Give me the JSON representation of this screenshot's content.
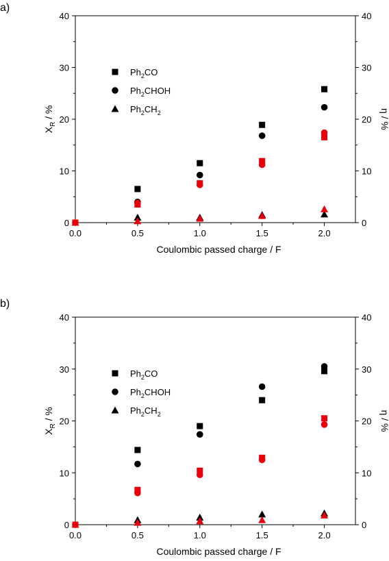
{
  "chart_data": [
    {
      "panel_label": "a)",
      "type": "scatter",
      "xlabel": "Coulombic passed charge / F",
      "ylabel_left": {
        "main": "X",
        "sub": "R",
        "suffix": " / %"
      },
      "ylabel_right": "η / %",
      "xlim": [
        0,
        2.25
      ],
      "ylim": [
        0,
        40
      ],
      "x_ticks": [
        "0.0",
        "0.5",
        "1.0",
        "1.5",
        "2.0"
      ],
      "y_ticks": [
        "0",
        "10",
        "20",
        "30",
        "40"
      ],
      "legend": [
        {
          "marker": "square",
          "parts": [
            "Ph",
            "2",
            "CO"
          ]
        },
        {
          "marker": "circle",
          "parts": [
            "Ph",
            "2",
            "CHOH"
          ]
        },
        {
          "marker": "triangle",
          "parts": [
            "Ph",
            "2",
            "CH",
            "2"
          ]
        }
      ],
      "series": [
        {
          "axis": "left",
          "marker": "square",
          "color": "#000000",
          "points": [
            [
              0.5,
              6.5
            ],
            [
              1.0,
              11.5
            ],
            [
              1.5,
              18.9
            ],
            [
              2.0,
              25.8
            ]
          ]
        },
        {
          "axis": "left",
          "marker": "circle",
          "color": "#000000",
          "points": [
            [
              0.5,
              4.0
            ],
            [
              1.0,
              9.2
            ],
            [
              1.5,
              16.8
            ],
            [
              2.0,
              22.3
            ]
          ]
        },
        {
          "axis": "left",
          "marker": "triangle",
          "color": "#000000",
          "points": [
            [
              0.5,
              1.0
            ],
            [
              1.0,
              1.0
            ],
            [
              1.5,
              1.5
            ],
            [
              2.0,
              1.6
            ]
          ]
        },
        {
          "axis": "right",
          "marker": "square",
          "color": "#e8000b",
          "points": [
            [
              0.0,
              0.0
            ],
            [
              0.5,
              3.5
            ],
            [
              1.0,
              7.6
            ],
            [
              1.5,
              11.9
            ],
            [
              2.0,
              16.5
            ]
          ]
        },
        {
          "axis": "right",
          "marker": "circle",
          "color": "#e8000b",
          "points": [
            [
              0.0,
              0.0
            ],
            [
              0.5,
              3.8
            ],
            [
              1.0,
              7.3
            ],
            [
              1.5,
              11.2
            ],
            [
              2.0,
              17.4
            ]
          ]
        },
        {
          "axis": "right",
          "marker": "triangle",
          "color": "#e8000b",
          "points": [
            [
              0.0,
              0.0
            ],
            [
              0.5,
              0.3
            ],
            [
              1.0,
              0.8
            ],
            [
              1.5,
              1.3
            ],
            [
              2.0,
              2.6
            ]
          ]
        }
      ]
    },
    {
      "panel_label": "b)",
      "type": "scatter",
      "xlabel": "Coulombic passed charge / F",
      "ylabel_left": {
        "main": "X",
        "sub": "R",
        "suffix": " / %"
      },
      "ylabel_right": "η / %",
      "xlim": [
        0,
        2.25
      ],
      "ylim": [
        0,
        40
      ],
      "x_ticks": [
        "0.0",
        "0.5",
        "1.0",
        "1.5",
        "2.0"
      ],
      "y_ticks": [
        "0",
        "10",
        "20",
        "30",
        "40"
      ],
      "legend": [
        {
          "marker": "square",
          "parts": [
            "Ph",
            "2",
            "CO"
          ]
        },
        {
          "marker": "circle",
          "parts": [
            "Ph",
            "2",
            "CHOH"
          ]
        },
        {
          "marker": "triangle",
          "parts": [
            "Ph",
            "2",
            "CH",
            "2"
          ]
        }
      ],
      "series": [
        {
          "axis": "left",
          "marker": "square",
          "color": "#000000",
          "points": [
            [
              0.5,
              14.4
            ],
            [
              1.0,
              19.0
            ],
            [
              1.5,
              24.0
            ],
            [
              2.0,
              29.6
            ]
          ]
        },
        {
          "axis": "left",
          "marker": "circle",
          "color": "#000000",
          "points": [
            [
              0.5,
              11.7
            ],
            [
              1.0,
              17.4
            ],
            [
              1.5,
              26.6
            ],
            [
              2.0,
              30.5
            ]
          ]
        },
        {
          "axis": "left",
          "marker": "triangle",
          "color": "#000000",
          "points": [
            [
              0.5,
              0.9
            ],
            [
              1.0,
              1.4
            ],
            [
              1.5,
              2.0
            ],
            [
              2.0,
              2.2
            ]
          ]
        },
        {
          "axis": "right",
          "marker": "square",
          "color": "#e8000b",
          "points": [
            [
              0.0,
              0.0
            ],
            [
              0.5,
              6.7
            ],
            [
              1.0,
              10.4
            ],
            [
              1.5,
              12.9
            ],
            [
              2.0,
              20.5
            ]
          ]
        },
        {
          "axis": "right",
          "marker": "circle",
          "color": "#e8000b",
          "points": [
            [
              0.0,
              0.0
            ],
            [
              0.5,
              6.1
            ],
            [
              1.0,
              9.6
            ],
            [
              1.5,
              12.5
            ],
            [
              2.0,
              19.3
            ]
          ]
        },
        {
          "axis": "right",
          "marker": "triangle",
          "color": "#e8000b",
          "points": [
            [
              0.0,
              0.0
            ],
            [
              0.5,
              0.4
            ],
            [
              1.0,
              0.7
            ],
            [
              1.5,
              0.9
            ],
            [
              2.0,
              1.8
            ]
          ]
        }
      ]
    }
  ]
}
